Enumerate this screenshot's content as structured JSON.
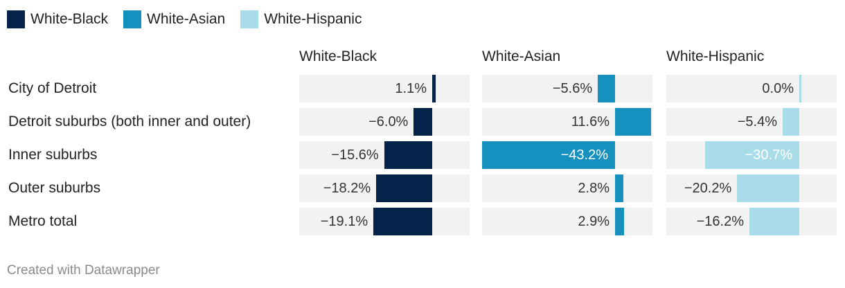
{
  "legend": [
    {
      "label": "White-Black",
      "color": "#03234a"
    },
    {
      "label": "White-Asian",
      "color": "#1590bf"
    },
    {
      "label": "White-Hispanic",
      "color": "#a9dce9"
    }
  ],
  "footer": "Created with Datawrapper",
  "chart_data": {
    "type": "bar",
    "categories": [
      "City of Detroit",
      "Detroit suburbs (both inner and outer)",
      "Inner suburbs",
      "Outer suburbs",
      "Metro total"
    ],
    "series": [
      {
        "name": "White-Black",
        "color": "#03234a",
        "values": [
          1.1,
          -6.0,
          -15.6,
          -18.2,
          -19.1
        ],
        "labels": [
          "1.1%",
          "−6.0%",
          "−15.6%",
          "−18.2%",
          "−19.1%"
        ]
      },
      {
        "name": "White-Asian",
        "color": "#1590bf",
        "values": [
          -5.6,
          11.6,
          -43.2,
          2.8,
          2.9
        ],
        "labels": [
          "−5.6%",
          "11.6%",
          "−43.2%",
          "2.8%",
          "2.9%"
        ]
      },
      {
        "name": "White-Hispanic",
        "color": "#a9dce9",
        "values": [
          0.0,
          -5.4,
          -30.7,
          -20.2,
          -16.2
        ],
        "labels": [
          "0.0%",
          "−5.4%",
          "−30.7%",
          "−20.2%",
          "−16.2%"
        ]
      }
    ],
    "xlim": [
      -43.2,
      11.6
    ],
    "legend_position": "top-left",
    "grid": false
  }
}
